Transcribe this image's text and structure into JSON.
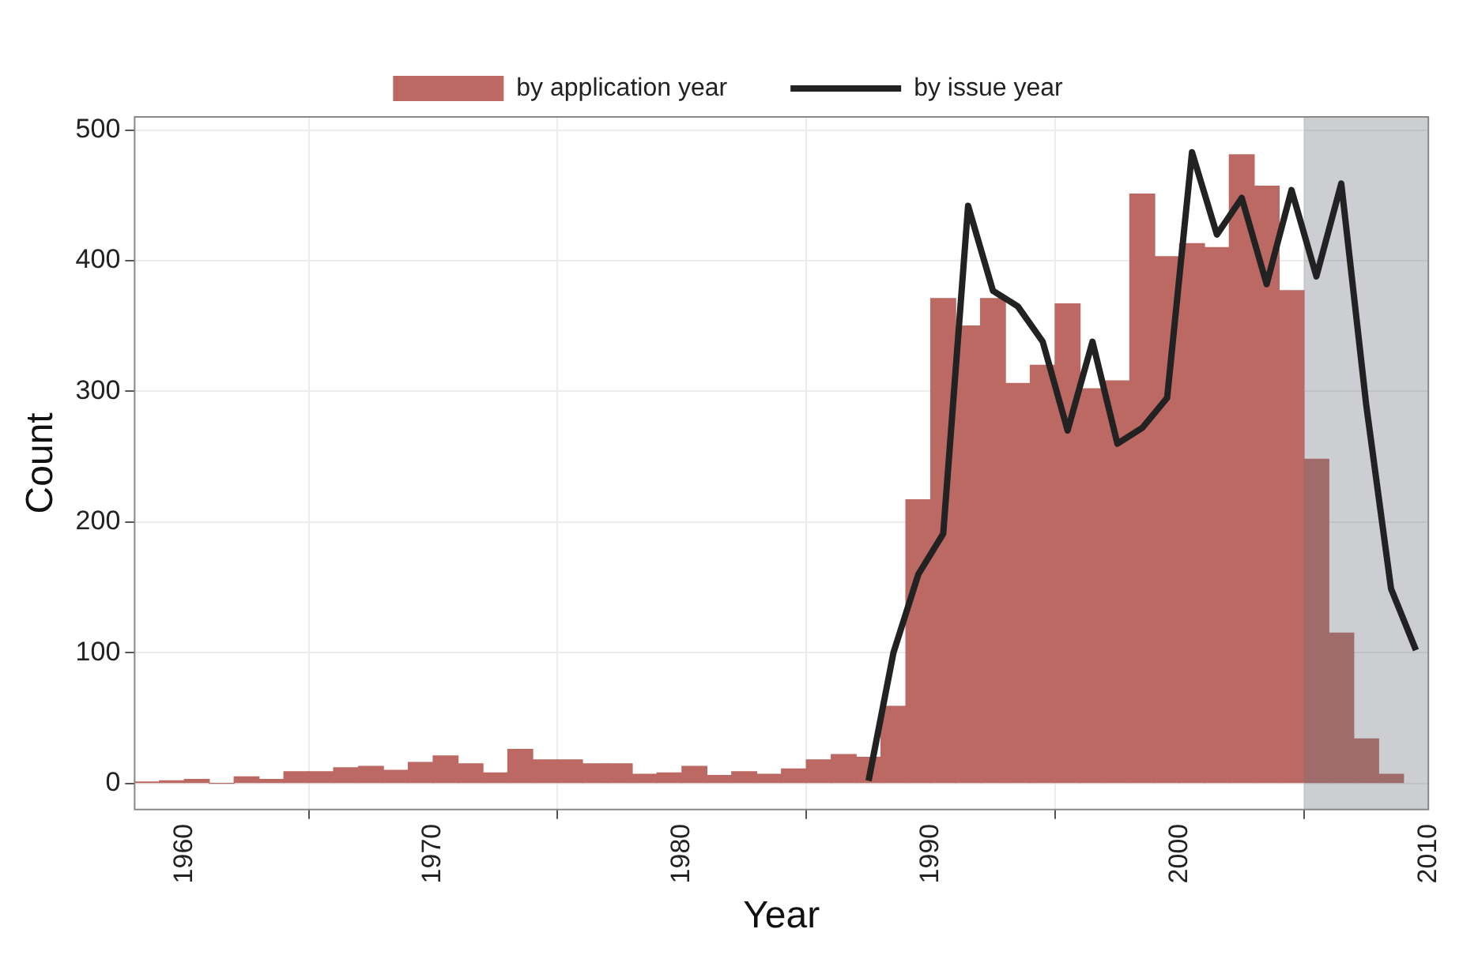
{
  "chart_data": {
    "type": "histogram",
    "xlabel": "Year",
    "ylabel": "Count",
    "bins": [
      1958,
      1959,
      1960,
      1961,
      1962,
      1963,
      1964,
      1965,
      1966,
      1967,
      1968,
      1969,
      1970,
      1971,
      1972,
      1973,
      1974,
      1975,
      1976,
      1977,
      1978,
      1979,
      1980,
      1981,
      1982,
      1983,
      1984,
      1985,
      1986,
      1987,
      1988,
      1989,
      1990,
      1991,
      1992,
      1993,
      1994,
      1995,
      1996,
      1997,
      1998,
      1999,
      2000,
      2001,
      2002,
      2003,
      2004,
      2005,
      2006,
      2007,
      2008,
      2009
    ],
    "series": [
      {
        "name": "by application year",
        "color": "#bc6863",
        "values": [
          1,
          2,
          3,
          0,
          5,
          3,
          9,
          9,
          12,
          13,
          10,
          16,
          21,
          15,
          8,
          26,
          18,
          18,
          15,
          15,
          7,
          8,
          13,
          6,
          9,
          7,
          11,
          18,
          22,
          20,
          59,
          217,
          371,
          350,
          371,
          306,
          320,
          367,
          302,
          308,
          451,
          403,
          413,
          410,
          481,
          457,
          377,
          248,
          115,
          34,
          7
        ]
      },
      {
        "type": "line",
        "name": "by issue year",
        "color": "#222222",
        "x": [
          1987.5,
          1988.5,
          1989.5,
          1990.5,
          1991.5,
          1992.5,
          1993.5,
          1994.5,
          1995.5,
          1996.5,
          1997.5,
          1998.5,
          1999.5,
          2000.5,
          2001.5,
          2002.5,
          2003.5,
          2004.5,
          2005.5,
          2006.5,
          2007.5,
          2008.5,
          2009.5
        ],
        "values": [
          2,
          100,
          160,
          191,
          442,
          377,
          365,
          338,
          270,
          338,
          260,
          272,
          295,
          483,
          420,
          448,
          382,
          454,
          388,
          459,
          290,
          149,
          102
        ]
      }
    ],
    "bands": [
      {
        "axis": "x",
        "from": 2005,
        "to": 2010,
        "color": "#6e747c"
      }
    ],
    "xlim": [
      1958,
      2010
    ],
    "xticks": [
      1960,
      1970,
      1980,
      1990,
      2000,
      2010
    ],
    "ylim": [
      -20,
      510
    ],
    "yticks": [
      0,
      100,
      200,
      300,
      400,
      500
    ],
    "grid": true,
    "legend": "top"
  }
}
